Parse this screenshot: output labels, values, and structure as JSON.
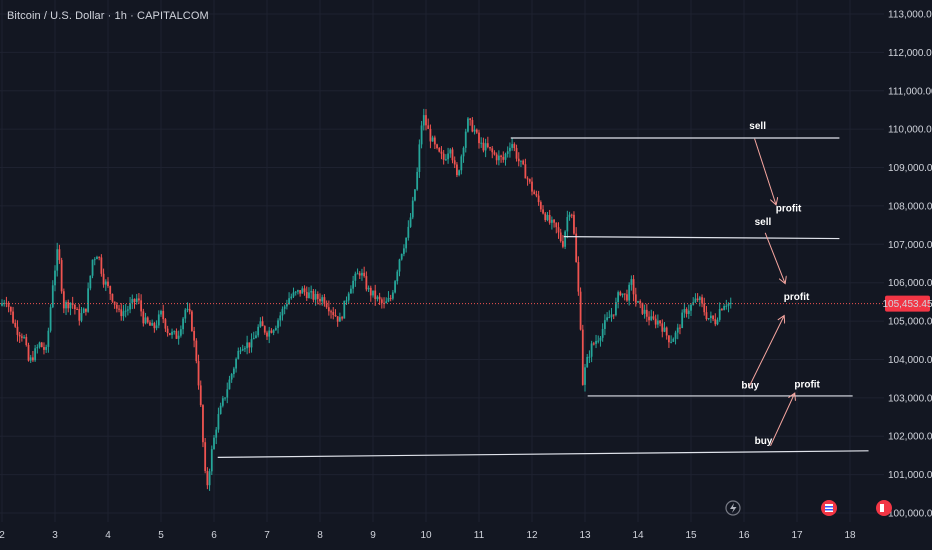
{
  "header": {
    "title": "Bitcoin / U.S. Dollar · 1h · CAPITALCOM"
  },
  "colors": {
    "background": "#131722",
    "grid": "#1e2230",
    "bull": "#26a69a",
    "bear": "#ef5350",
    "axis_text": "#d1d4dc",
    "line": "#e0e3eb",
    "price_line": "#ef5350",
    "price_badge": "#f23645",
    "arrow": "#f7a6a0"
  },
  "icons": [
    "flash-icon",
    "flag-event-icon",
    "flag-event-icon"
  ],
  "chart_data": {
    "type": "candlestick",
    "symbol": "Bitcoin / U.S. Dollar",
    "interval": "1h",
    "source": "CAPITALCOM",
    "last_price": 105453.45,
    "last_price_label": "105,453.45",
    "ylim": [
      99800,
      113100
    ],
    "xlim": [
      2.0,
      19.0
    ],
    "ytick_values": [
      100000,
      101000,
      102000,
      103000,
      104000,
      105000,
      106000,
      107000,
      108000,
      109000,
      110000,
      111000,
      112000,
      113000
    ],
    "ytick_labels": [
      "100,000.00",
      "101,000.00",
      "102,000.00",
      "103,000.00",
      "104,000.00",
      "105,000.00",
      "106,000.00",
      "107,000.00",
      "108,000.00",
      "109,000.00",
      "110,000.00",
      "111,000.00",
      "112,000.00",
      "113,000.00"
    ],
    "xtick_values": [
      2,
      3,
      4,
      5,
      6,
      7,
      8,
      9,
      10,
      11,
      12,
      13,
      14,
      15,
      16,
      17,
      18
    ],
    "xtick_labels": [
      "2",
      "3",
      "4",
      "5",
      "6",
      "7",
      "8",
      "9",
      "10",
      "11",
      "12",
      "13",
      "14",
      "15",
      "16",
      "17",
      "18"
    ],
    "price_path": [
      [
        2.0,
        105400
      ],
      [
        2.12,
        105600
      ],
      [
        2.3,
        104800
      ],
      [
        2.45,
        104600
      ],
      [
        2.55,
        103900
      ],
      [
        2.75,
        104400
      ],
      [
        2.88,
        104200
      ],
      [
        3.0,
        106000
      ],
      [
        3.1,
        106900
      ],
      [
        3.2,
        105400
      ],
      [
        3.35,
        105500
      ],
      [
        3.5,
        105100
      ],
      [
        3.62,
        105300
      ],
      [
        3.75,
        106600
      ],
      [
        3.85,
        106800
      ],
      [
        3.95,
        106100
      ],
      [
        4.1,
        105700
      ],
      [
        4.25,
        105200
      ],
      [
        4.4,
        105300
      ],
      [
        4.6,
        105600
      ],
      [
        4.72,
        105000
      ],
      [
        4.9,
        104800
      ],
      [
        5.05,
        105200
      ],
      [
        5.18,
        104700
      ],
      [
        5.35,
        104600
      ],
      [
        5.5,
        105300
      ],
      [
        5.6,
        105100
      ],
      [
        5.72,
        103900
      ],
      [
        5.8,
        102600
      ],
      [
        5.86,
        101200
      ],
      [
        5.9,
        100600
      ],
      [
        6.0,
        101600
      ],
      [
        6.1,
        102400
      ],
      [
        6.3,
        103300
      ],
      [
        6.55,
        104400
      ],
      [
        6.75,
        104400
      ],
      [
        6.9,
        104900
      ],
      [
        7.05,
        104700
      ],
      [
        7.2,
        104900
      ],
      [
        7.45,
        105600
      ],
      [
        7.7,
        105800
      ],
      [
        7.95,
        105600
      ],
      [
        8.1,
        105600
      ],
      [
        8.25,
        105300
      ],
      [
        8.42,
        105000
      ],
      [
        8.6,
        105900
      ],
      [
        8.8,
        106300
      ],
      [
        8.95,
        105800
      ],
      [
        9.1,
        105600
      ],
      [
        9.25,
        105400
      ],
      [
        9.38,
        105600
      ],
      [
        9.55,
        106700
      ],
      [
        9.7,
        107300
      ],
      [
        9.8,
        108100
      ],
      [
        9.88,
        108900
      ],
      [
        9.95,
        110100
      ],
      [
        10.0,
        110300
      ],
      [
        10.12,
        109800
      ],
      [
        10.25,
        109400
      ],
      [
        10.38,
        109200
      ],
      [
        10.5,
        109600
      ],
      [
        10.62,
        108700
      ],
      [
        10.72,
        109400
      ],
      [
        10.82,
        110200
      ],
      [
        10.95,
        110000
      ],
      [
        11.05,
        109600
      ],
      [
        11.2,
        109500
      ],
      [
        11.35,
        109300
      ],
      [
        11.5,
        109200
      ],
      [
        11.65,
        109700
      ],
      [
        11.78,
        109200
      ],
      [
        11.9,
        108900
      ],
      [
        12.05,
        108400
      ],
      [
        12.2,
        108000
      ],
      [
        12.35,
        107600
      ],
      [
        12.5,
        107400
      ],
      [
        12.62,
        107000
      ],
      [
        12.72,
        107800
      ],
      [
        12.78,
        108000
      ],
      [
        12.85,
        107000
      ],
      [
        12.9,
        106000
      ],
      [
        12.95,
        105200
      ],
      [
        13.0,
        103400
      ],
      [
        13.05,
        103800
      ],
      [
        13.15,
        104300
      ],
      [
        13.3,
        104600
      ],
      [
        13.45,
        105000
      ],
      [
        13.6,
        105300
      ],
      [
        13.7,
        105800
      ],
      [
        13.82,
        105600
      ],
      [
        13.92,
        106000
      ],
      [
        14.0,
        105500
      ],
      [
        14.12,
        105300
      ],
      [
        14.3,
        105000
      ],
      [
        14.45,
        105000
      ],
      [
        14.55,
        104700
      ],
      [
        14.65,
        104500
      ],
      [
        14.78,
        104700
      ],
      [
        14.9,
        105200
      ],
      [
        15.05,
        105400
      ],
      [
        15.18,
        105600
      ],
      [
        15.28,
        105300
      ],
      [
        15.35,
        105100
      ],
      [
        15.5,
        105000
      ],
      [
        15.58,
        105300
      ],
      [
        15.68,
        105500
      ],
      [
        15.75,
        105450
      ]
    ],
    "drawings": {
      "lines": [
        {
          "x1": 11.6,
          "y1": 109770,
          "x2": 17.8,
          "y2": 109770
        },
        {
          "x1": 12.6,
          "y1": 107200,
          "x2": 17.8,
          "y2": 107150
        },
        {
          "x1": 13.05,
          "y1": 103050,
          "x2": 18.05,
          "y2": 103050
        },
        {
          "x1": 6.07,
          "y1": 101450,
          "x2": 18.35,
          "y2": 101620
        }
      ],
      "arrows": [
        {
          "x1": 16.2,
          "y1": 109750,
          "x2": 16.6,
          "y2": 108050
        },
        {
          "x1": 16.4,
          "y1": 107300,
          "x2": 16.77,
          "y2": 106000
        },
        {
          "x1": 16.1,
          "y1": 103300,
          "x2": 16.75,
          "y2": 105120
        },
        {
          "x1": 16.5,
          "y1": 101750,
          "x2": 16.95,
          "y2": 103100
        }
      ],
      "labels": [
        {
          "text": "sell",
          "x": 16.1,
          "y": 110000
        },
        {
          "text": "profit",
          "x": 16.6,
          "y": 107850
        },
        {
          "text": "sell",
          "x": 16.2,
          "y": 107500
        },
        {
          "text": "profit",
          "x": 16.75,
          "y": 105550
        },
        {
          "text": "buy",
          "x": 15.95,
          "y": 103250
        },
        {
          "text": "profit",
          "x": 16.95,
          "y": 103270
        },
        {
          "text": "buy",
          "x": 16.2,
          "y": 101800
        }
      ]
    }
  }
}
